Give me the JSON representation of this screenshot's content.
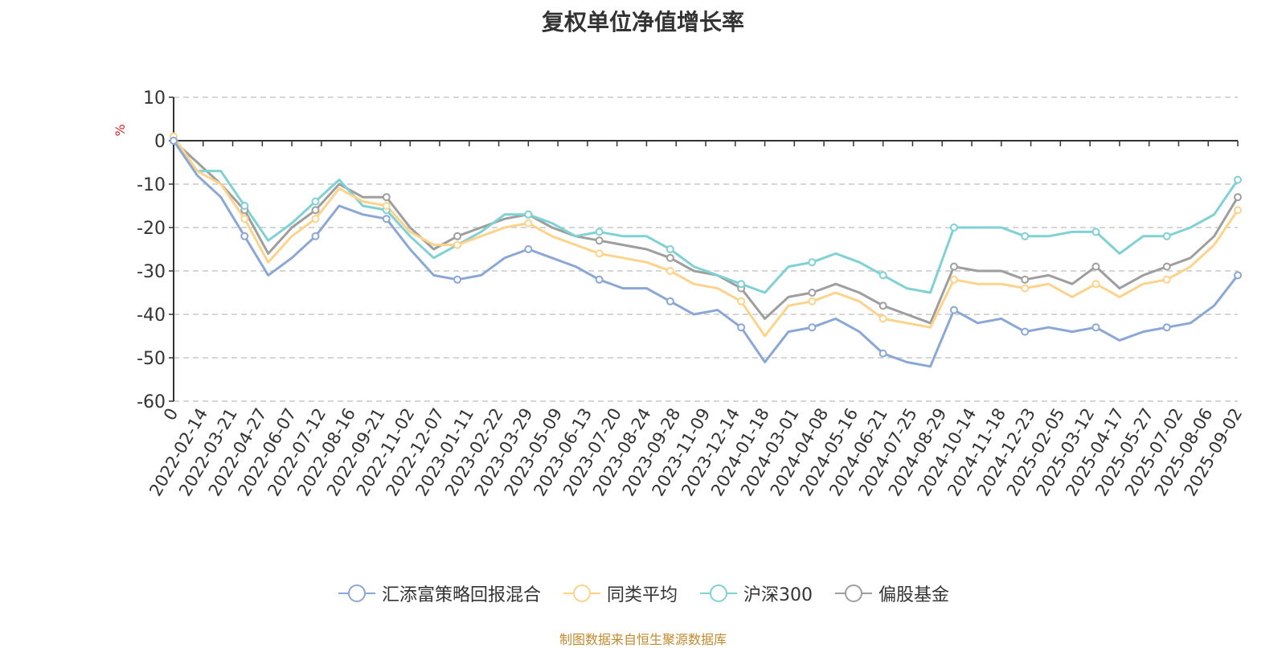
{
  "chart_data": {
    "type": "line",
    "title": "复权单位净值增长率",
    "ylabel": "%",
    "ylim": [
      -60,
      10
    ],
    "yticks": [
      10,
      0,
      -10,
      -20,
      -30,
      -40,
      -50,
      -60
    ],
    "x_tick_labels": [
      "0",
      "2022-02-14",
      "2022-03-21",
      "2022-04-27",
      "2022-06-07",
      "2022-07-12",
      "2022-08-16",
      "2022-09-21",
      "2022-11-02",
      "2022-12-07",
      "2023-01-11",
      "2023-02-22",
      "2023-03-29",
      "2023-05-09",
      "2023-06-13",
      "2023-07-20",
      "2023-08-24",
      "2023-09-28",
      "2023-11-09",
      "2023-12-14",
      "2024-01-18",
      "2024-03-01",
      "2024-04-08",
      "2024-05-16",
      "2024-06-21",
      "2024-07-25",
      "2024-08-29",
      "2024-10-14",
      "2024-11-18",
      "2024-12-23",
      "2025-02-05",
      "2025-03-12",
      "2025-04-17",
      "2025-05-27",
      "2025-07-02",
      "2025-08-06",
      "2025-09-02"
    ],
    "grid": "dashed horizontal",
    "legend_position": "bottom",
    "series": [
      {
        "name": "汇添富策略回报混合",
        "color": "#8aa7d6",
        "values": [
          0,
          -8,
          -13,
          -22,
          -31,
          -27,
          -22,
          -15,
          -17,
          -18,
          -25,
          -31,
          -32,
          -31,
          -27,
          -25,
          -27,
          -29,
          -32,
          -34,
          -34,
          -37,
          -40,
          -39,
          -43,
          -51,
          -44,
          -43,
          -41,
          -44,
          -49,
          -51,
          -52,
          -39,
          -42,
          -41,
          -44,
          -43,
          -44,
          -43,
          -46,
          -44,
          -43,
          -42,
          -38,
          -31
        ]
      },
      {
        "name": "同类平均",
        "color": "#fdd38b",
        "values": [
          1,
          -7,
          -10,
          -18,
          -28,
          -22,
          -18,
          -11,
          -14,
          -15,
          -21,
          -24,
          -24,
          -22,
          -20,
          -19,
          -22,
          -24,
          -26,
          -27,
          -28,
          -30,
          -33,
          -34,
          -37,
          -45,
          -38,
          -37,
          -35,
          -37,
          -41,
          -42,
          -43,
          -32,
          -33,
          -33,
          -34,
          -33,
          -36,
          -33,
          -36,
          -33,
          -32,
          -29,
          -24,
          -16
        ]
      },
      {
        "name": "沪深300",
        "color": "#7fd1d4",
        "values": [
          0,
          -7,
          -7,
          -15,
          -23,
          -19,
          -14,
          -9,
          -15,
          -16,
          -22,
          -27,
          -24,
          -21,
          -17,
          -17,
          -19,
          -22,
          -21,
          -22,
          -22,
          -25,
          -29,
          -31,
          -33,
          -35,
          -29,
          -28,
          -26,
          -28,
          -31,
          -34,
          -35,
          -20,
          -20,
          -20,
          -22,
          -22,
          -21,
          -21,
          -26,
          -22,
          -22,
          -20,
          -17,
          -9
        ]
      },
      {
        "name": "偏股基金",
        "color": "#9e9e9e",
        "values": [
          0,
          -5,
          -10,
          -16,
          -26,
          -20,
          -16,
          -10,
          -13,
          -13,
          -20,
          -25,
          -22,
          -20,
          -18,
          -17,
          -20,
          -22,
          -23,
          -24,
          -25,
          -27,
          -30,
          -31,
          -34,
          -41,
          -36,
          -35,
          -33,
          -35,
          -38,
          -40,
          -42,
          -29,
          -30,
          -30,
          -32,
          -31,
          -33,
          -29,
          -34,
          -31,
          -29,
          -27,
          -22,
          -13
        ]
      }
    ]
  },
  "footer": "制图数据来自恒生聚源数据库"
}
